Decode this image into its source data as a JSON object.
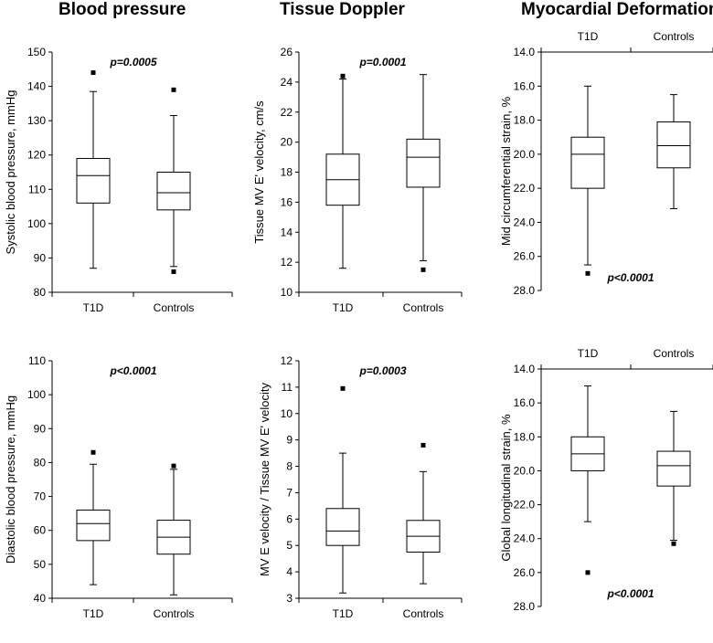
{
  "titles": {
    "blood_pressure": "Blood pressure",
    "tissue_doppler": "Tissue Doppler",
    "myocardial_deformation": "Myocardial Deformation"
  },
  "chart_data": [
    {
      "id": "sbp",
      "type": "boxplot",
      "ylabel": "Systolic blood pressure, mmHg",
      "categories": [
        "T1D",
        "Controls"
      ],
      "ylim": [
        80,
        150
      ],
      "yticks": [
        80,
        90,
        100,
        110,
        120,
        130,
        140,
        150
      ],
      "tick_decimals": 0,
      "reversed": false,
      "category_axis": "bottom",
      "annotation": "p=0.0005",
      "annotation_position": "top",
      "boxes": [
        {
          "min": 87,
          "q1": 106,
          "median": 114,
          "q3": 119,
          "max": 138.5,
          "outliers": [
            144
          ]
        },
        {
          "min": 87.5,
          "q1": 104,
          "median": 109,
          "q3": 115,
          "max": 131.5,
          "outliers": [
            139,
            86
          ]
        }
      ]
    },
    {
      "id": "mve",
      "type": "boxplot",
      "ylabel": "Tissue MV E' velocity, cm/s",
      "categories": [
        "T1D",
        "Controls"
      ],
      "ylim": [
        10,
        26
      ],
      "yticks": [
        10,
        12,
        14,
        16,
        18,
        20,
        22,
        24,
        26
      ],
      "tick_decimals": 0,
      "reversed": false,
      "category_axis": "bottom",
      "annotation": "p=0.0001",
      "annotation_position": "top",
      "boxes": [
        {
          "min": 11.6,
          "q1": 15.8,
          "median": 17.5,
          "q3": 19.2,
          "max": 24.2,
          "outliers": [
            24.4
          ]
        },
        {
          "min": 12.1,
          "q1": 17.0,
          "median": 19.0,
          "q3": 20.2,
          "max": 24.5,
          "outliers": [
            11.5
          ]
        }
      ]
    },
    {
      "id": "circ",
      "type": "boxplot",
      "ylabel": "Mid circumferential strain, %",
      "categories": [
        "T1D",
        "Controls"
      ],
      "ylim": [
        14,
        28
      ],
      "yticks": [
        14,
        16,
        18,
        20,
        22,
        24,
        26,
        28
      ],
      "tick_decimals": 1,
      "reversed": true,
      "category_axis": "top",
      "annotation": "p<0.0001",
      "annotation_position": "bottom",
      "boxes": [
        {
          "min": 16.0,
          "q1": 19.0,
          "median": 20.0,
          "q3": 22.0,
          "max": 26.5,
          "outliers": [
            27.0
          ]
        },
        {
          "min": 16.5,
          "q1": 18.1,
          "median": 19.5,
          "q3": 20.8,
          "max": 23.2,
          "outliers": []
        }
      ]
    },
    {
      "id": "dbp",
      "type": "boxplot",
      "ylabel": "Diastolic blood pressure, mmHg",
      "categories": [
        "T1D",
        "Controls"
      ],
      "ylim": [
        40,
        110
      ],
      "yticks": [
        40,
        50,
        60,
        70,
        80,
        90,
        100,
        110
      ],
      "tick_decimals": 0,
      "reversed": false,
      "category_axis": "bottom",
      "annotation": "p<0.0001",
      "annotation_position": "top",
      "boxes": [
        {
          "min": 44,
          "q1": 57,
          "median": 62,
          "q3": 66,
          "max": 79.5,
          "outliers": [
            83
          ]
        },
        {
          "min": 41,
          "q1": 53,
          "median": 58,
          "q3": 63,
          "max": 78,
          "outliers": [
            79
          ]
        }
      ]
    },
    {
      "id": "ratio",
      "type": "boxplot",
      "ylabel": "MV E velocity / Tissue MV E' velocity",
      "categories": [
        "T1D",
        "Controls"
      ],
      "ylim": [
        3,
        12
      ],
      "yticks": [
        3,
        4,
        5,
        6,
        7,
        8,
        9,
        10,
        11,
        12
      ],
      "tick_decimals": 0,
      "reversed": false,
      "category_axis": "bottom",
      "annotation": "p=0.0003",
      "annotation_position": "top",
      "boxes": [
        {
          "min": 3.2,
          "q1": 5.0,
          "median": 5.55,
          "q3": 6.4,
          "max": 8.5,
          "outliers": [
            10.95
          ]
        },
        {
          "min": 3.55,
          "q1": 4.75,
          "median": 5.35,
          "q3": 5.95,
          "max": 7.8,
          "outliers": [
            8.8
          ]
        }
      ]
    },
    {
      "id": "gls",
      "type": "boxplot",
      "ylabel": "Global longitudinal strain, %",
      "categories": [
        "T1D",
        "Controls"
      ],
      "ylim": [
        14,
        28
      ],
      "yticks": [
        14,
        16,
        18,
        20,
        22,
        24,
        26,
        28
      ],
      "tick_decimals": 1,
      "reversed": true,
      "category_axis": "top",
      "annotation": "p<0.0001",
      "annotation_position": "bottom",
      "boxes": [
        {
          "min": 15.0,
          "q1": 18.0,
          "median": 19.0,
          "q3": 20.0,
          "max": 23.0,
          "outliers": [
            26.0
          ]
        },
        {
          "min": 16.5,
          "q1": 18.85,
          "median": 19.7,
          "q3": 20.9,
          "max": 24.1,
          "outliers": [
            24.3
          ]
        }
      ]
    }
  ]
}
